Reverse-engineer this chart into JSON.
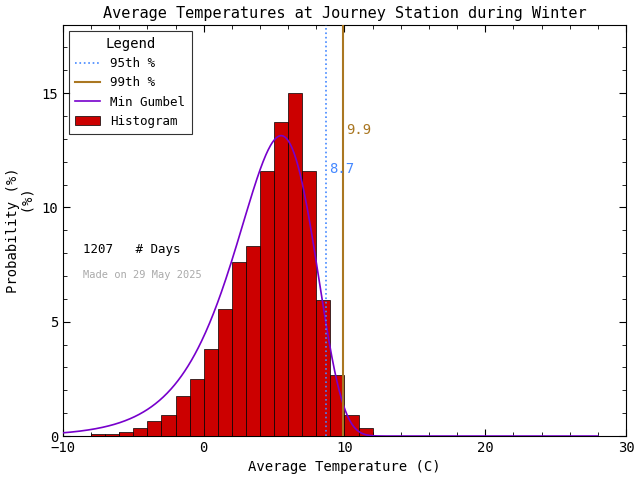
{
  "title": "Average Temperatures at Journey Station during Winter",
  "xlabel": "Average Temperature (C)",
  "ylabel1": "Probability (%)",
  "ylabel2": "(%)",
  "xlim": [
    -10,
    30
  ],
  "ylim": [
    0,
    18
  ],
  "xticks": [
    -10,
    0,
    10,
    20,
    30
  ],
  "yticks": [
    0,
    5,
    10,
    15
  ],
  "bin_edges": [
    -10,
    -9,
    -8,
    -7,
    -6,
    -5,
    -4,
    -3,
    -2,
    -1,
    0,
    1,
    2,
    3,
    4,
    5,
    6,
    7,
    8,
    9,
    10,
    11,
    12,
    13,
    14,
    15,
    16,
    17,
    18,
    19,
    20
  ],
  "bin_heights": [
    0.0,
    0.0,
    0.08,
    0.08,
    0.16,
    0.33,
    0.66,
    0.91,
    1.74,
    2.48,
    3.8,
    5.54,
    7.62,
    8.3,
    11.6,
    13.75,
    15.0,
    11.6,
    5.95,
    2.65,
    0.91,
    0.33,
    0.0,
    0.0,
    0.0,
    0.0,
    0.0,
    0.0,
    0.0,
    0.0
  ],
  "bar_color": "#cc0000",
  "bar_edgecolor": "#000000",
  "gumbel_color": "#7700cc",
  "p95_value": 8.7,
  "p95_color": "#4488ff",
  "p99_value": 9.9,
  "p99_color": "#aa7722",
  "n_days": 1207,
  "made_on": "Made on 29 May 2025",
  "made_on_color": "#aaaaaa",
  "background_color": "#ffffff",
  "gumbel_mu": 5.5,
  "gumbel_beta": 2.8
}
